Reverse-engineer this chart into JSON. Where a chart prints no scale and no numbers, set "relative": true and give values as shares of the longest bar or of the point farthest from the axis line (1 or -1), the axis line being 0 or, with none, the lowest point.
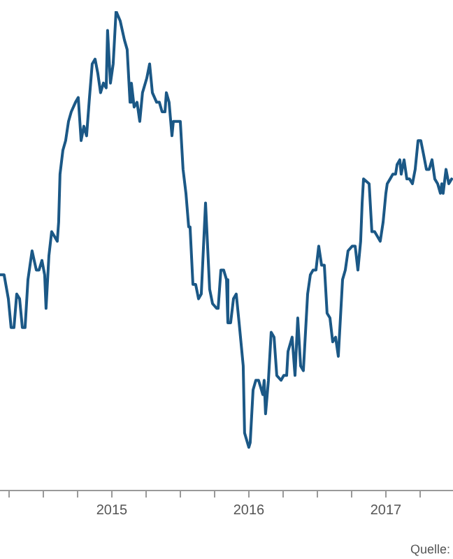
{
  "chart_data": {
    "type": "line",
    "relative": true,
    "color": "#1b5886",
    "marker": "none",
    "line_style": "solid",
    "legend": false,
    "x": [
      2014.184,
      2014.214,
      2014.245,
      2014.265,
      2014.286,
      2014.306,
      2014.327,
      2014.347,
      2014.367,
      2014.388,
      2014.418,
      2014.449,
      2014.469,
      2014.49,
      2014.51,
      2014.52,
      2014.541,
      2014.561,
      2014.582,
      2014.602,
      2014.612,
      2014.622,
      2014.643,
      2014.663,
      2014.684,
      2014.704,
      2014.735,
      2014.755,
      2014.776,
      2014.796,
      2014.816,
      2014.837,
      2014.857,
      2014.878,
      2014.898,
      2014.918,
      2014.939,
      2014.959,
      2014.969,
      2014.99,
      2015.01,
      2015.031,
      2015.061,
      2015.092,
      2015.112,
      2015.133,
      2015.143,
      2015.163,
      2015.184,
      2015.204,
      2015.224,
      2015.255,
      2015.276,
      2015.296,
      2015.327,
      2015.347,
      2015.367,
      2015.388,
      2015.398,
      2015.418,
      2015.439,
      2015.449,
      2015.469,
      2015.5,
      2015.52,
      2015.541,
      2015.561,
      2015.571,
      2015.592,
      2015.612,
      2015.633,
      2015.653,
      2015.684,
      2015.714,
      2015.735,
      2015.765,
      2015.776,
      2015.796,
      2015.816,
      2015.837,
      2015.847,
      2015.867,
      2015.888,
      2015.908,
      2015.929,
      2015.949,
      2015.959,
      2015.969,
      2016.0,
      2016.01,
      2016.031,
      2016.051,
      2016.071,
      2016.092,
      2016.102,
      2016.112,
      2016.122,
      2016.143,
      2016.163,
      2016.184,
      2016.204,
      2016.235,
      2016.255,
      2016.276,
      2016.286,
      2016.316,
      2016.337,
      2016.357,
      2016.378,
      2016.398,
      2016.429,
      2016.449,
      2016.469,
      2016.49,
      2016.51,
      2016.531,
      2016.551,
      2016.571,
      2016.592,
      2016.612,
      2016.633,
      2016.653,
      2016.684,
      2016.704,
      2016.724,
      2016.755,
      2016.776,
      2016.796,
      2016.816,
      2016.827,
      2016.837,
      2016.878,
      2016.898,
      2016.918,
      2016.939,
      2016.959,
      2016.98,
      2017.0,
      2017.01,
      2017.031,
      2017.051,
      2017.071,
      2017.082,
      2017.102,
      2017.112,
      2017.133,
      2017.153,
      2017.173,
      2017.194,
      2017.214,
      2017.235,
      2017.255,
      2017.276,
      2017.296,
      2017.316,
      2017.337,
      2017.357,
      2017.378,
      2017.398,
      2017.408,
      2017.418,
      2017.439,
      2017.459,
      2017.48
    ],
    "values": [
      0.45,
      0.45,
      0.4,
      0.34,
      0.34,
      0.41,
      0.4,
      0.34,
      0.34,
      0.44,
      0.5,
      0.46,
      0.46,
      0.48,
      0.45,
      0.38,
      0.49,
      0.54,
      0.53,
      0.52,
      0.56,
      0.66,
      0.71,
      0.73,
      0.77,
      0.79,
      0.81,
      0.82,
      0.73,
      0.76,
      0.74,
      0.82,
      0.89,
      0.9,
      0.87,
      0.83,
      0.85,
      0.84,
      0.96,
      0.85,
      0.89,
      1,
      0.98,
      0.94,
      0.92,
      0.81,
      0.85,
      0.8,
      0.81,
      0.77,
      0.83,
      0.86,
      0.89,
      0.83,
      0.81,
      0.81,
      0.79,
      0.79,
      0.83,
      0.81,
      0.74,
      0.77,
      0.77,
      0.77,
      0.67,
      0.62,
      0.55,
      0.55,
      0.43,
      0.43,
      0.4,
      0.41,
      0.6,
      0.42,
      0.39,
      0.38,
      0.38,
      0.46,
      0.46,
      0.44,
      0.35,
      0.35,
      0.4,
      0.41,
      0.35,
      0.29,
      0.26,
      0.12,
      0.09,
      0.1,
      0.21,
      0.23,
      0.23,
      0.21,
      0.2,
      0.23,
      0.16,
      0.23,
      0.33,
      0.32,
      0.24,
      0.23,
      0.24,
      0.24,
      0.29,
      0.32,
      0.24,
      0.36,
      0.26,
      0.25,
      0.41,
      0.45,
      0.46,
      0.46,
      0.51,
      0.47,
      0.47,
      0.37,
      0.36,
      0.31,
      0.32,
      0.28,
      0.44,
      0.46,
      0.5,
      0.51,
      0.51,
      0.46,
      0.52,
      0.6,
      0.65,
      0.64,
      0.54,
      0.54,
      0.53,
      0.52,
      0.56,
      0.62,
      0.64,
      0.65,
      0.66,
      0.66,
      0.68,
      0.69,
      0.66,
      0.69,
      0.65,
      0.65,
      0.64,
      0.67,
      0.73,
      0.73,
      0.7,
      0.67,
      0.67,
      0.69,
      0.65,
      0.64,
      0.62,
      0.64,
      0.62,
      0.67,
      0.64,
      0.65
    ],
    "xlim": [
      2014.184,
      2017.49
    ],
    "xticks": [
      {
        "value": 2014.25,
        "label": null
      },
      {
        "value": 2014.5,
        "label": null
      },
      {
        "value": 2014.75,
        "label": null
      },
      2015,
      {
        "value": 2015.25,
        "label": null
      },
      {
        "value": 2015.5,
        "label": null
      },
      {
        "value": 2015.75,
        "label": null
      },
      2016,
      {
        "value": 2016.25,
        "label": null
      },
      {
        "value": 2016.5,
        "label": null
      },
      {
        "value": 2016.75,
        "label": null
      },
      2017,
      {
        "value": 2017.25,
        "label": null
      }
    ],
    "annotations": [
      "Quelle:"
    ]
  }
}
